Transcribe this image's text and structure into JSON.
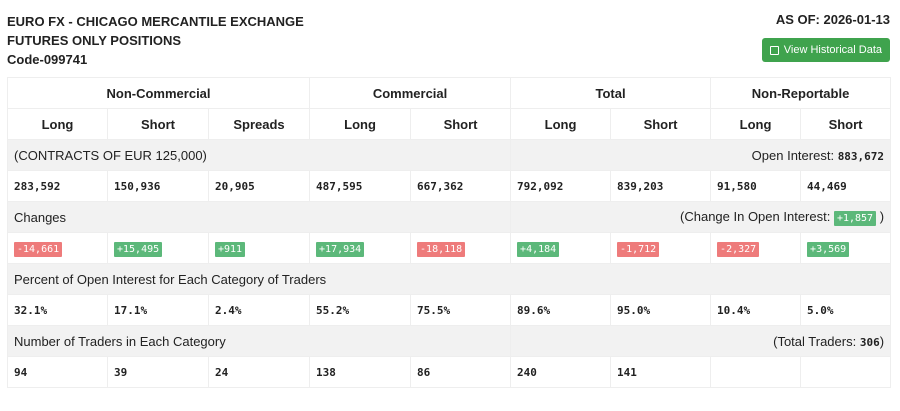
{
  "header": {
    "line1": "EURO FX - CHICAGO MERCANTILE EXCHANGE",
    "line2": "FUTURES ONLY POSITIONS",
    "code": "Code-099741",
    "as_of": "AS OF: 2026-01-13",
    "button": "View Historical Data"
  },
  "groups": [
    "Non-Commercial",
    "Commercial",
    "Total",
    "Non-Reportable"
  ],
  "columns": [
    "Long",
    "Short",
    "Spreads",
    "Long",
    "Short",
    "Long",
    "Short",
    "Long",
    "Short"
  ],
  "contracts_label": "(CONTRACTS OF EUR 125,000)",
  "open_interest_label": "Open Interest:",
  "open_interest": "883,672",
  "positions": [
    "283,592",
    "150,936",
    "20,905",
    "487,595",
    "667,362",
    "792,092",
    "839,203",
    "91,580",
    "44,469"
  ],
  "changes_label": "Changes",
  "change_oi_label": "(Change In Open Interest:",
  "change_oi": "+1,857",
  "change_oi_close": ")",
  "changes": [
    "-14,661",
    "+15,495",
    "+911",
    "+17,934",
    "-18,118",
    "+4,184",
    "-1,712",
    "-2,327",
    "+3,569"
  ],
  "percent_label": "Percent of Open Interest for Each Category of Traders",
  "percent": [
    "32.1%",
    "17.1%",
    "2.4%",
    "55.2%",
    "75.5%",
    "89.6%",
    "95.0%",
    "10.4%",
    "5.0%"
  ],
  "traders_label": "Number of Traders in Each Category",
  "total_traders_label": "(Total Traders:",
  "total_traders": "306",
  "total_traders_close": ")",
  "traders": [
    "94",
    "39",
    "24",
    "138",
    "86",
    "240",
    "141",
    "",
    ""
  ],
  "colors": {
    "positive": "#5cb87a",
    "negative": "#ee7b7b",
    "button": "#3fa34d"
  }
}
